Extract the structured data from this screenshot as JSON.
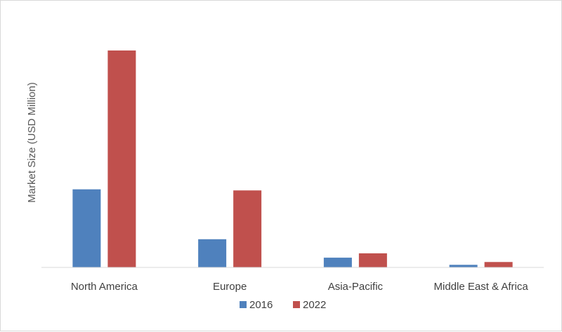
{
  "chart_data": {
    "type": "bar",
    "title": "",
    "xlabel": "",
    "ylabel": "Market Size (USD Million)",
    "categories": [
      "North America",
      "Europe",
      "Asia-Pacific",
      "Middle East & Africa"
    ],
    "series": [
      {
        "name": "2016",
        "color": "#4f81bd",
        "values": [
          36,
          13,
          4.5,
          1.2
        ]
      },
      {
        "name": "2022",
        "color": "#c0504d",
        "values": [
          100,
          35.5,
          6.5,
          2.5
        ]
      }
    ],
    "ylim": [
      0,
      110
    ],
    "grid": false,
    "legend": "bottom-center"
  }
}
